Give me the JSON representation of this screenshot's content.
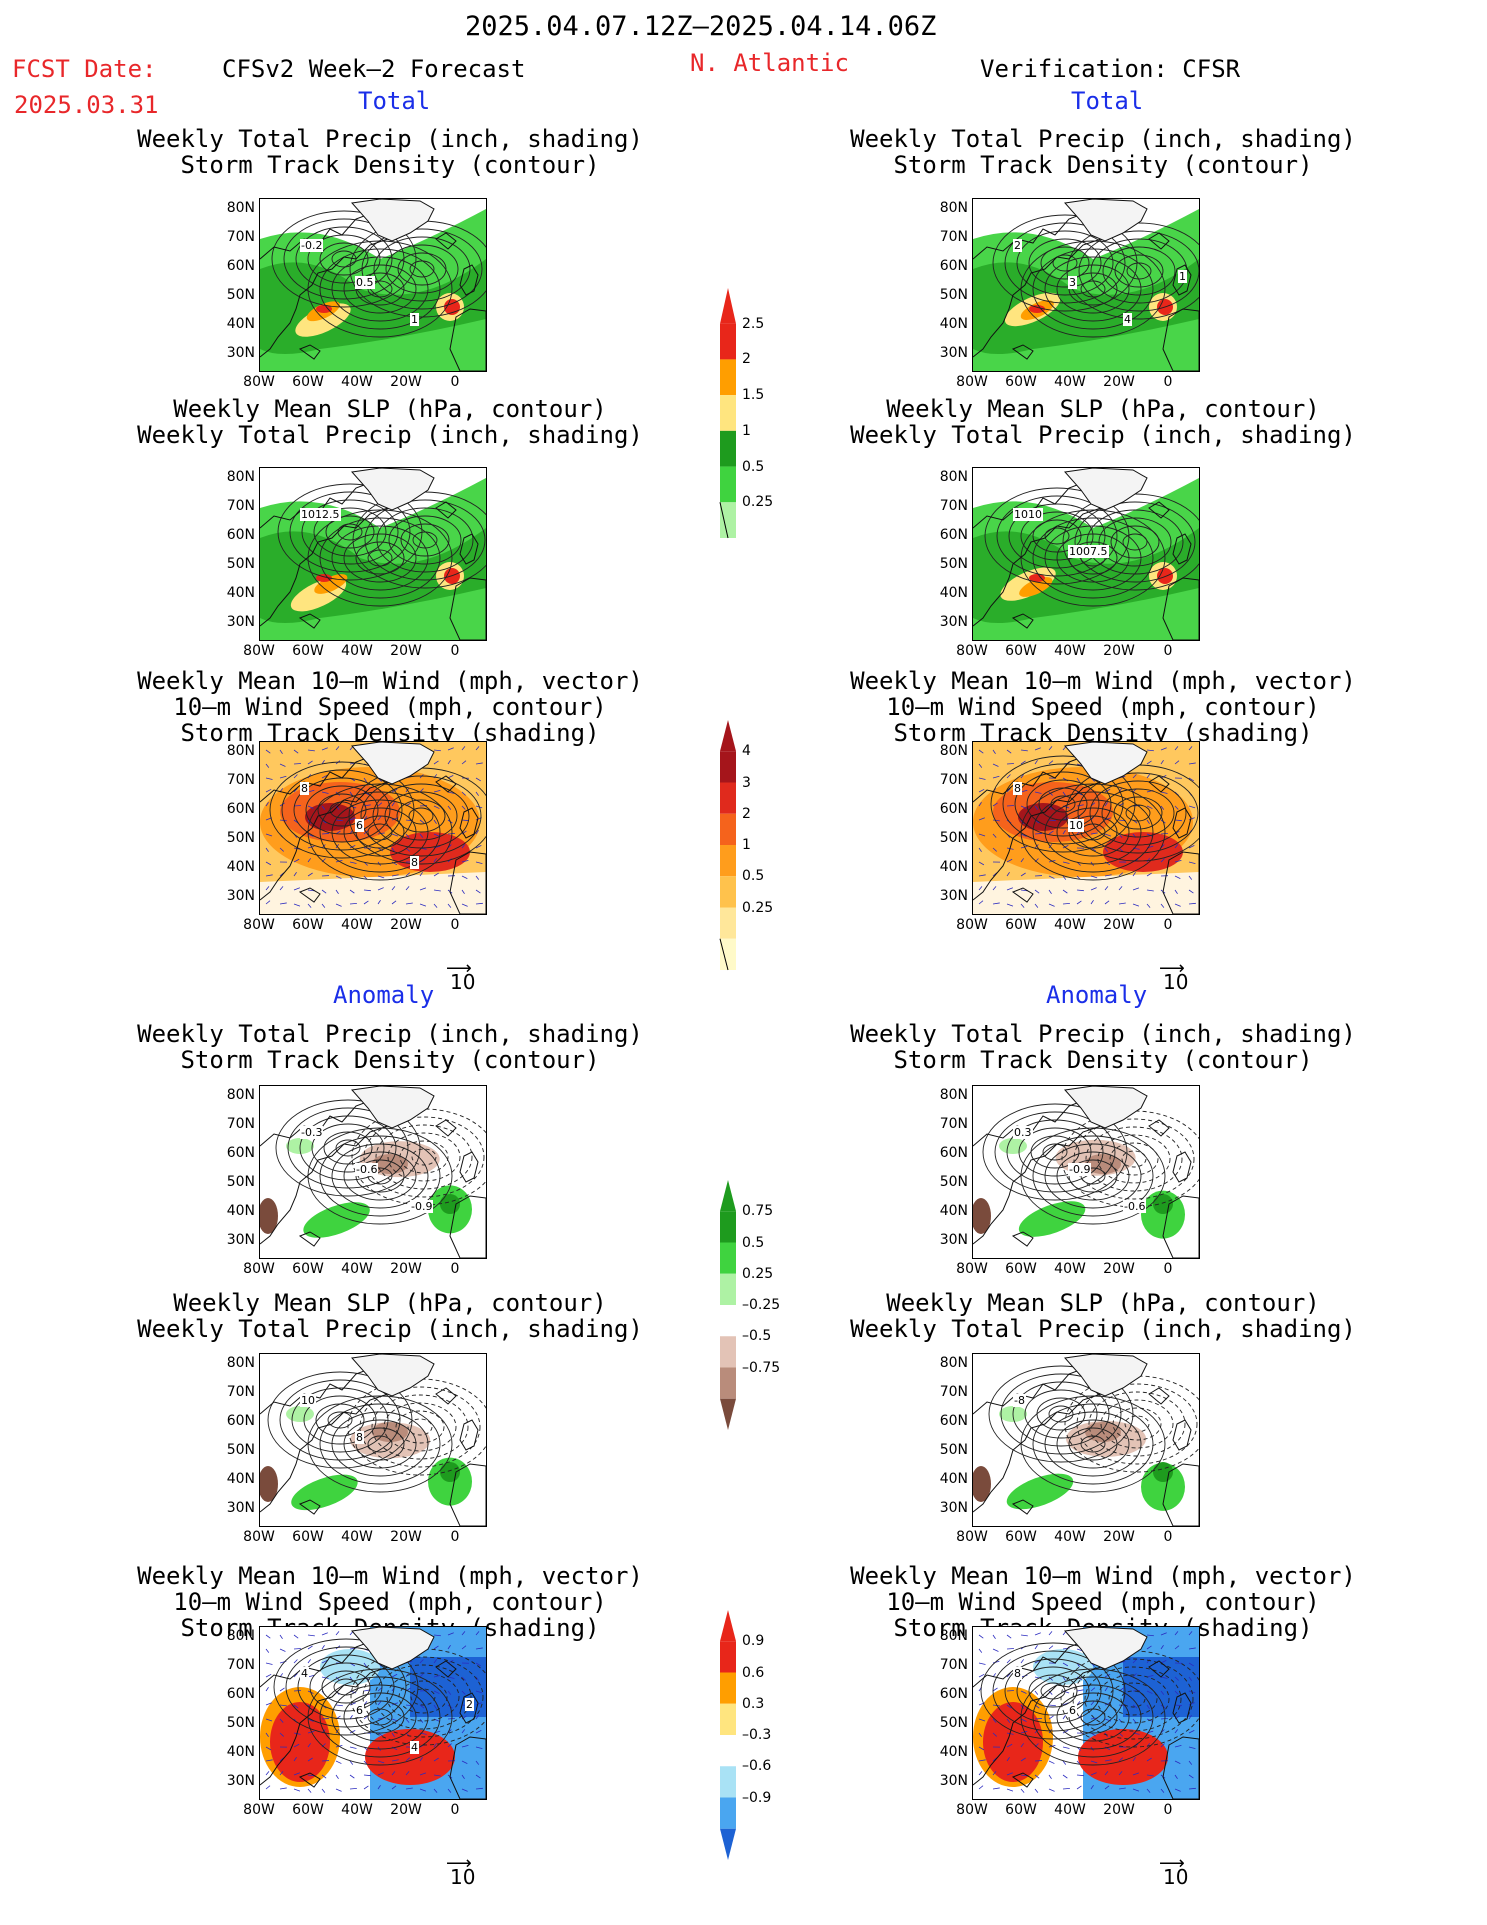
{
  "header": {
    "period": "2025.04.07.12Z–2025.04.14.06Z",
    "fcst_label": "FCST Date:",
    "fcst_date": "2025.03.31",
    "model": "CFSv2 Week–2 Forecast",
    "region": "N. Atlantic",
    "verification": "Verification: CFSR"
  },
  "sections": {
    "total": "Total",
    "anomaly": "Anomaly"
  },
  "panel_titles": {
    "precip_storm": [
      "Weekly Total Precip (inch, shading)",
      "Storm Track Density (contour)"
    ],
    "slp_precip": [
      "Weekly Mean SLP (hPa, contour)",
      "Weekly Total Precip (inch, shading)"
    ],
    "wind_storm": [
      "Weekly Mean 10–m Wind (mph, vector)",
      "10–m Wind Speed (mph, contour)",
      "Storm Track Density (shading)"
    ]
  },
  "axes": {
    "lat_ticks": [
      "80N",
      "70N",
      "60N",
      "50N",
      "40N",
      "30N"
    ],
    "lon_ticks": [
      "80W",
      "60W",
      "40W",
      "20W",
      "0"
    ]
  },
  "vector_ref": "10",
  "colorbars": {
    "precip_total": {
      "labels": [
        "2.5",
        "2",
        "1.5",
        "1",
        "0.5",
        "0.25"
      ],
      "colors": [
        "#e8261a",
        "#ff9e00",
        "#ffe57f",
        "#1e9b1e",
        "#3fd33f",
        "#aef2a4"
      ]
    },
    "storm_total": {
      "labels": [
        "4",
        "3",
        "2",
        "1",
        "0.5",
        "0.25"
      ],
      "colors": [
        "#a5151b",
        "#e02a1d",
        "#f5631c",
        "#ff9d1c",
        "#ffc24c",
        "#ffe79a",
        "#fffac9"
      ]
    },
    "precip_anom": {
      "labels": [
        "0.75",
        "0.5",
        "0.25",
        "–0.25",
        "–0.5",
        "–0.75"
      ],
      "colors": [
        "#1e9b1e",
        "#3fd33f",
        "#aef2a4",
        "#ffffff",
        "#e3c3b6",
        "#b98c7b",
        "#7a4b3c"
      ]
    },
    "storm_anom": {
      "labels": [
        "0.9",
        "0.6",
        "0.3",
        "–0.3",
        "–0.6",
        "–0.9"
      ],
      "colors": [
        "#e8261a",
        "#ff9e00",
        "#ffe57f",
        "#ffffff",
        "#a9e2f5",
        "#4aa6f0",
        "#1d62d4"
      ]
    }
  },
  "contour_labels": {
    "f_total_1": [
      "-0.2",
      "0.5",
      "1"
    ],
    "v_total_1": [
      "2",
      "3",
      "4",
      "1",
      "0.5"
    ],
    "f_total_2": [
      "1012.5"
    ],
    "v_total_2": [
      "1010",
      "1007.5"
    ],
    "f_total_3": [
      "8",
      "6",
      "8"
    ],
    "v_total_3": [
      "8",
      "10"
    ],
    "f_anom_1": [
      "-0.3",
      "-0.6",
      "-0.9"
    ],
    "v_anom_1": [
      "0.3",
      "-0.9",
      "-0.6"
    ],
    "f_anom_2": [
      "10",
      "8"
    ],
    "v_anom_2": [
      "-8"
    ],
    "f_anom_3": [
      "4",
      "6",
      "4",
      "2"
    ],
    "v_anom_3": [
      "8",
      "6"
    ]
  }
}
